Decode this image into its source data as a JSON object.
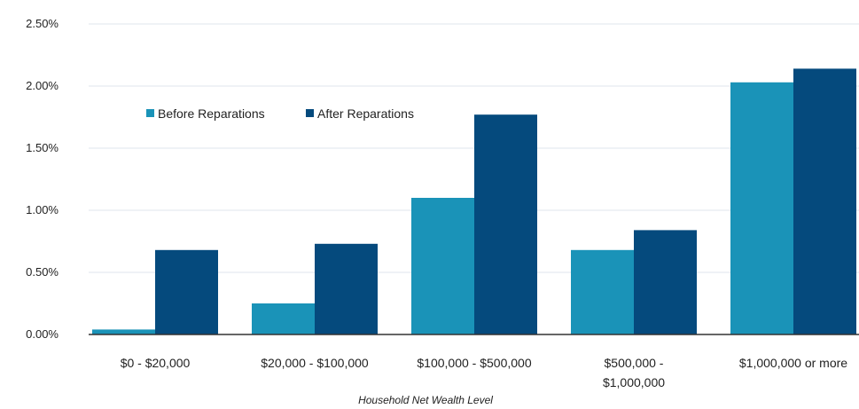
{
  "chart_data": {
    "type": "bar",
    "title": "",
    "xlabel": "Household Net Wealth Level",
    "ylabel": "",
    "ylim": [
      0,
      2.5
    ],
    "yticks": [
      "0.00%",
      "0.50%",
      "1.00%",
      "1.50%",
      "2.00%",
      "2.50%"
    ],
    "categories": [
      "$0 - $20,000",
      "$20,000 - $100,000",
      "$100,000 - $500,000",
      "$500,000 - $1,000,000",
      "$1,000,000 or more"
    ],
    "category_lines": [
      [
        "$0 - $20,000"
      ],
      [
        "$20,000 - $100,000"
      ],
      [
        "$100,000 - $500,000"
      ],
      [
        "$500,000 -",
        "$1,000,000"
      ],
      [
        "$1,000,000 or more"
      ]
    ],
    "series": [
      {
        "name": "Before Reparations",
        "color": "#1a93b8",
        "values": [
          0.04,
          0.25,
          1.1,
          0.68,
          2.03
        ]
      },
      {
        "name": "After Reparations",
        "color": "#054a7d",
        "values": [
          0.68,
          0.73,
          1.77,
          0.84,
          2.14
        ]
      }
    ],
    "grid": true,
    "legend_position": "top-left"
  }
}
